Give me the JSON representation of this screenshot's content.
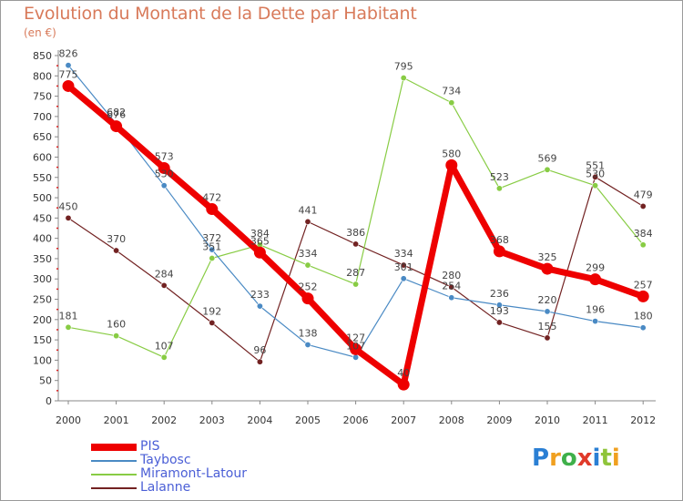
{
  "chart_data": {
    "type": "line",
    "title": "Evolution du Montant de la Dette par Habitant",
    "subtitle": "(en €)",
    "categories": [
      "2000",
      "2001",
      "2002",
      "2003",
      "2004",
      "2005",
      "2006",
      "2007",
      "2008",
      "2009",
      "2010",
      "2011",
      "2012"
    ],
    "ylim": [
      0,
      850
    ],
    "yticks": [
      0,
      50,
      100,
      150,
      200,
      250,
      300,
      350,
      400,
      450,
      500,
      550,
      600,
      650,
      700,
      750,
      800,
      850
    ],
    "grid": false,
    "legend_position": "bottom-left",
    "series": [
      {
        "name": "Lalanne",
        "color": "#722222",
        "values": [
          450,
          370,
          284,
          192,
          96,
          441,
          386,
          334,
          280,
          193,
          155,
          551,
          479
        ]
      },
      {
        "name": "Miramont-Latour",
        "color": "#88cc44",
        "values": [
          181,
          160,
          107,
          351,
          384,
          334,
          287,
          795,
          734,
          523,
          569,
          530,
          384
        ]
      },
      {
        "name": "Taybosc",
        "color": "#4a8ac4",
        "values": [
          826,
          682,
          530,
          372,
          233,
          138,
          107,
          301,
          254,
          236,
          220,
          196,
          180
        ]
      },
      {
        "name": "PIS",
        "color": "#ee0000",
        "values": [
          775,
          676,
          573,
          472,
          365,
          252,
          127,
          40,
          580,
          368,
          325,
          299,
          257
        ]
      }
    ],
    "legend": [
      "PIS",
      "Taybosc",
      "Miramont-Latour",
      "Lalanne"
    ]
  },
  "logo": {
    "letters": [
      "P",
      "r",
      "o",
      "x",
      "i",
      "t",
      "i"
    ],
    "colors": [
      "#2a7fd4",
      "#f0a020",
      "#3fb04a",
      "#e03a2a",
      "#2a7fd4",
      "#8fc43a",
      "#f0a020"
    ]
  }
}
